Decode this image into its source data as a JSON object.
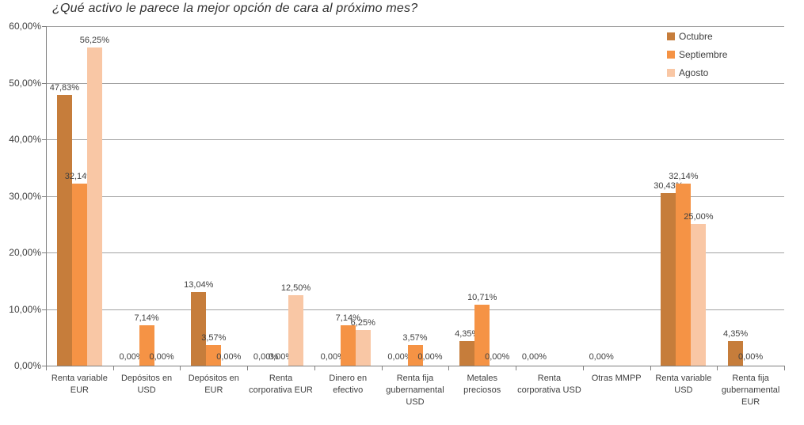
{
  "chart_data": {
    "type": "bar",
    "title": "¿Qué activo le parece la mejor opción de cara al próximo mes?",
    "categories": [
      "Renta variable EUR",
      "Depósitos en USD",
      "Depósitos en EUR",
      "Renta corporativa EUR",
      "Dinero en efectivo",
      "Renta fija gubernamental USD",
      "Metales preciosos",
      "Renta corporativa USD",
      "Otras MMPP",
      "Renta variable USD",
      "Renta fija gubernamental EUR"
    ],
    "series": [
      {
        "name": "Octubre",
        "color": "#c67d3b",
        "values": [
          47.83,
          0,
          13.04,
          0,
          0,
          0,
          4.35,
          0,
          0,
          30.43,
          4.35
        ],
        "labels": [
          "47,83%",
          "0,00%",
          "13,04%",
          "0,00%",
          "0,00%",
          "0,00%",
          "4,35%",
          "0,00%",
          "0,00%",
          "30,43%",
          "4,35%"
        ]
      },
      {
        "name": "Septiembre",
        "color": "#f59345",
        "values": [
          32.14,
          7.14,
          3.57,
          0,
          7.14,
          3.57,
          10.71,
          null,
          null,
          32.14,
          0
        ],
        "labels": [
          "32,14%",
          "7,14%",
          "3,57%",
          "0,00%",
          "7,14%",
          "3,57%",
          "10,71%",
          "",
          "",
          "32,14%",
          "0,00%"
        ]
      },
      {
        "name": "Agosto",
        "color": "#f9c7a5",
        "values": [
          56.25,
          0,
          0,
          12.5,
          6.25,
          0,
          0,
          null,
          null,
          25.0,
          null
        ],
        "labels": [
          "56,25%",
          "0,00%",
          "0,00%",
          "12,50%",
          "6,25%",
          "0,00%",
          "0,00%",
          "",
          "",
          "25,00%",
          ""
        ]
      }
    ],
    "y_ticks": [
      "0,00%",
      "10,00%",
      "20,00%",
      "30,00%",
      "40,00%",
      "50,00%",
      "60,00%"
    ],
    "ylim": [
      0,
      60
    ],
    "y_step": 10,
    "xlabel": "",
    "ylabel": "",
    "grid": true,
    "legend_position": "top-right",
    "colors": {
      "gridline": "#a3a3a3",
      "axis": "#808080",
      "text": "#3f3f3f",
      "background": "#ffffff"
    }
  }
}
